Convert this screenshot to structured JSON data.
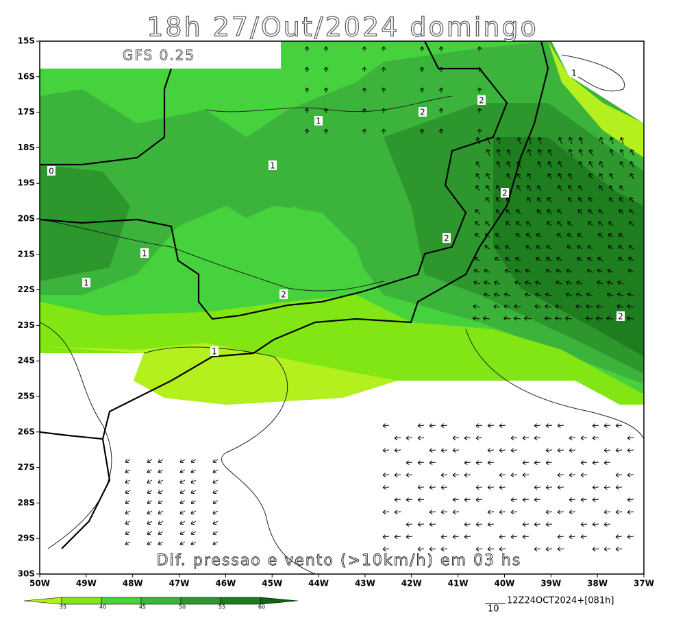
{
  "map": {
    "title": "18h 27/Out/2024 domingo",
    "model": "GFS 0.25",
    "caption": "Dif. pressao e vento (>10km/h) em 03 hs",
    "run_info": "12Z24OCT2024+[081h]",
    "vector_scale": "10",
    "lat_labels": [
      "15S",
      "16S",
      "17S",
      "18S",
      "19S",
      "20S",
      "21S",
      "22S",
      "23S",
      "24S",
      "25S",
      "26S",
      "27S",
      "28S",
      "29S",
      "30S"
    ],
    "lon_labels": [
      "50W",
      "49W",
      "48W",
      "47W",
      "46W",
      "45W",
      "44W",
      "43W",
      "42W",
      "41W",
      "40W",
      "39W",
      "38W",
      "37W"
    ],
    "contour_labels": [
      0,
      1,
      1,
      2,
      2,
      1,
      2,
      2,
      1,
      1,
      2,
      1,
      2
    ],
    "colorbar": {
      "levels": [
        35,
        40,
        45,
        50,
        55,
        60
      ],
      "colors": [
        "#b4f01e",
        "#82e614",
        "#46d23c",
        "#3cb43c",
        "#2d962d",
        "#1e7d1e",
        "#0f6414"
      ]
    }
  }
}
